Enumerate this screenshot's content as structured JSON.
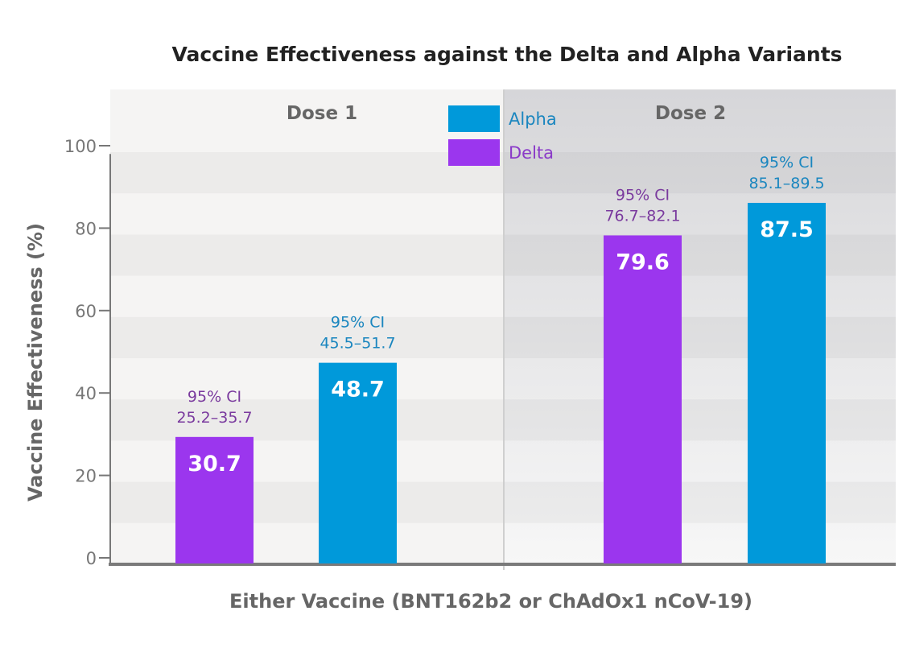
{
  "chart_data": {
    "type": "bar",
    "title": "Vaccine Effectiveness against the Delta and Alpha Variants",
    "xlabel": "Either Vaccine (BNT162b2 or ChAdOx1 nCoV-19)",
    "ylabel": "Vaccine Effectiveness (%)",
    "ylim": [
      0,
      115
    ],
    "yticks": [
      0,
      20,
      40,
      60,
      80,
      100
    ],
    "grid": false,
    "legend_placement": "top-center",
    "groups": [
      {
        "name": "Dose 1",
        "bars": [
          {
            "series": "Delta",
            "value": 30.7,
            "label": "30.7",
            "ci_title": "95% CI",
            "ci": "25.2–35.7"
          },
          {
            "series": "Alpha",
            "value": 48.7,
            "label": "48.7",
            "ci_title": "95% CI",
            "ci": "45.5–51.7"
          }
        ]
      },
      {
        "name": "Dose 2",
        "bars": [
          {
            "series": "Delta",
            "value": 79.6,
            "label": "79.6",
            "ci_title": "95% CI",
            "ci": "76.7–82.1"
          },
          {
            "series": "Alpha",
            "value": 87.5,
            "label": "87.5",
            "ci_title": "95% CI",
            "ci": "85.1–89.5"
          }
        ]
      }
    ],
    "series": [
      {
        "name": "Alpha",
        "color": "#0099da"
      },
      {
        "name": "Delta",
        "color": "#9b36ee"
      }
    ]
  }
}
